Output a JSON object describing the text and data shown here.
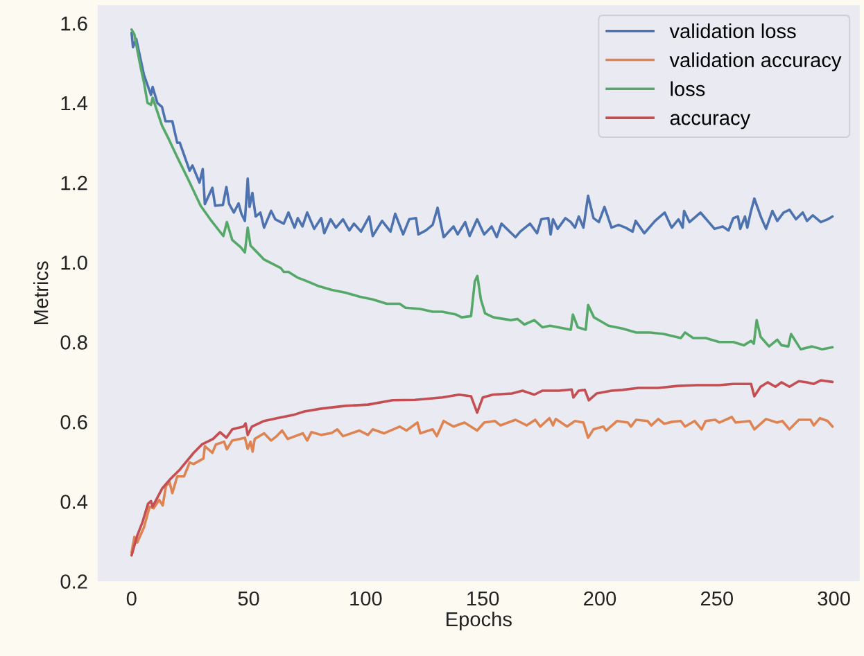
{
  "chart_data": {
    "type": "line",
    "xlabel": "Epochs",
    "ylabel": "Metrics",
    "xlim": [
      -14.5,
      311
    ],
    "ylim": [
      0.2,
      1.645
    ],
    "xticks": [
      0,
      50,
      100,
      150,
      200,
      250,
      300
    ],
    "yticks": [
      {
        "value": 0.2,
        "label": "0.2"
      },
      {
        "value": 0.4,
        "label": "0.4"
      },
      {
        "value": 0.6,
        "label": "0.6"
      },
      {
        "value": 0.8,
        "label": "0.8"
      },
      {
        "value": 1.0,
        "label": "1.0"
      },
      {
        "value": 1.2,
        "label": "1.2"
      },
      {
        "value": 1.4,
        "label": "1.4"
      },
      {
        "value": 1.6,
        "label": "1.6"
      }
    ],
    "grid": false,
    "legend": "top right",
    "line_style": "solid",
    "marker": "none",
    "series": [
      {
        "name": "validation loss",
        "color": "#4c72b0",
        "x": [
          0,
          0.6,
          2,
          5.3,
          8.3,
          9,
          11,
          13,
          14.5,
          17.4,
          19.5,
          20.6,
          21.8,
          24.8,
          26,
          29,
          30.4,
          31.3,
          34.5,
          35.7,
          39,
          40.5,
          41.7,
          43.7,
          45.7,
          46.9,
          48.4,
          49.6,
          50.4,
          51.6,
          53,
          55,
          56.6,
          59.6,
          61.4,
          65,
          67,
          69.6,
          71,
          73,
          75,
          78,
          81,
          82.3,
          85,
          87.3,
          90.3,
          93,
          95,
          98,
          101.5,
          103,
          107,
          110.6,
          112.6,
          116,
          118.6,
          121.5,
          122.5,
          125.7,
          128.6,
          130.7,
          133.3,
          137.5,
          139.3,
          142.5,
          144.4,
          147.6,
          150.6,
          153.8,
          156,
          158,
          164,
          166,
          170.2,
          173.2,
          175,
          178,
          179,
          180,
          182,
          185.3,
          187.6,
          189.4,
          191,
          193,
          195,
          197.3,
          199.6,
          202,
          205,
          208,
          211,
          214,
          215.3,
          219,
          223.6,
          227.7,
          230.7,
          233.6,
          235.4,
          236,
          238.3,
          243,
          249,
          252.5,
          255,
          257,
          259,
          260,
          262,
          263,
          264.3,
          266,
          269,
          271,
          273.7,
          275.8,
          278.5,
          281,
          283.8,
          286.7,
          288.5,
          291,
          294.4,
          297.3,
          299.4
        ],
        "values": [
          1.576,
          1.54,
          1.56,
          1.47,
          1.42,
          1.44,
          1.4,
          1.39,
          1.354,
          1.354,
          1.3,
          1.3,
          1.28,
          1.23,
          1.243,
          1.2,
          1.234,
          1.146,
          1.187,
          1.142,
          1.144,
          1.189,
          1.146,
          1.125,
          1.148,
          1.122,
          1.104,
          1.21,
          1.139,
          1.174,
          1.115,
          1.125,
          1.087,
          1.129,
          1.108,
          1.097,
          1.125,
          1.087,
          1.111,
          1.09,
          1.125,
          1.084,
          1.111,
          1.073,
          1.108,
          1.087,
          1.108,
          1.08,
          1.097,
          1.077,
          1.115,
          1.066,
          1.104,
          1.077,
          1.122,
          1.07,
          1.108,
          1.111,
          1.07,
          1.08,
          1.094,
          1.137,
          1.063,
          1.09,
          1.07,
          1.101,
          1.066,
          1.108,
          1.07,
          1.09,
          1.063,
          1.097,
          1.063,
          1.077,
          1.097,
          1.073,
          1.108,
          1.111,
          1.07,
          1.108,
          1.084,
          1.111,
          1.101,
          1.087,
          1.115,
          1.087,
          1.167,
          1.111,
          1.101,
          1.139,
          1.087,
          1.094,
          1.087,
          1.077,
          1.104,
          1.073,
          1.104,
          1.125,
          1.087,
          1.108,
          1.087,
          1.129,
          1.101,
          1.125,
          1.084,
          1.09,
          1.08,
          1.111,
          1.115,
          1.084,
          1.115,
          1.087,
          1.122,
          1.16,
          1.111,
          1.084,
          1.129,
          1.104,
          1.125,
          1.132,
          1.108,
          1.125,
          1.104,
          1.118,
          1.101,
          1.108,
          1.115
        ]
      },
      {
        "name": "validation accuracy",
        "color": "#dd8452",
        "x": [
          0,
          1.2,
          2.4,
          5.3,
          7.7,
          9.4,
          11.8,
          13.3,
          14.7,
          16.2,
          17.4,
          19.5,
          22.4,
          24.8,
          26.5,
          30.7,
          31.3,
          34.5,
          36,
          39.5,
          40.7,
          43,
          48.4,
          49.6,
          50.8,
          51.7,
          52.6,
          56.6,
          59.6,
          62,
          64.3,
          66.7,
          73.2,
          75,
          76.8,
          81,
          85.5,
          87.9,
          90.3,
          97.3,
          101,
          103,
          107.8,
          114.5,
          117.4,
          122.1,
          123.3,
          128.6,
          130.4,
          133.3,
          137.5,
          142.2,
          147.6,
          150.6,
          155.2,
          157.6,
          164,
          168.8,
          172.4,
          174.6,
          178.5,
          180,
          181.2,
          186,
          189.4,
          193,
          195,
          197.3,
          201.5,
          202.7,
          207.4,
          212,
          213.3,
          215.5,
          220.4,
          222,
          225,
          227.5,
          231,
          234.6,
          236.4,
          240.5,
          243.5,
          245.2,
          249.3,
          251,
          256.4,
          258,
          264,
          266,
          271,
          275.7,
          278,
          281,
          285,
          290,
          291.4,
          294,
          297.3,
          299.4
        ],
        "values": [
          0.272,
          0.311,
          0.297,
          0.335,
          0.387,
          0.383,
          0.404,
          0.39,
          0.439,
          0.449,
          0.421,
          0.463,
          0.463,
          0.498,
          0.494,
          0.508,
          0.539,
          0.522,
          0.543,
          0.55,
          0.531,
          0.553,
          0.56,
          0.532,
          0.55,
          0.525,
          0.557,
          0.571,
          0.553,
          0.564,
          0.578,
          0.557,
          0.571,
          0.553,
          0.574,
          0.567,
          0.572,
          0.581,
          0.564,
          0.578,
          0.567,
          0.581,
          0.571,
          0.588,
          0.578,
          0.598,
          0.571,
          0.581,
          0.564,
          0.602,
          0.588,
          0.598,
          0.578,
          0.598,
          0.602,
          0.591,
          0.605,
          0.591,
          0.605,
          0.588,
          0.609,
          0.591,
          0.607,
          0.588,
          0.602,
          0.598,
          0.56,
          0.581,
          0.588,
          0.578,
          0.602,
          0.598,
          0.588,
          0.605,
          0.602,
          0.591,
          0.607,
          0.595,
          0.6,
          0.602,
          0.588,
          0.602,
          0.581,
          0.602,
          0.605,
          0.598,
          0.612,
          0.598,
          0.602,
          0.581,
          0.607,
          0.598,
          0.602,
          0.581,
          0.605,
          0.605,
          0.591,
          0.609,
          0.602,
          0.588
        ]
      },
      {
        "name": "loss",
        "color": "#55a868",
        "x": [
          0,
          1.2,
          2.4,
          4,
          5.3,
          6.8,
          8.3,
          9,
          13,
          15.9,
          19.5,
          24.2,
          29.5,
          33.6,
          39.2,
          40.7,
          43,
          46.6,
          48.4,
          49.6,
          50.8,
          54.3,
          56.6,
          63.7,
          65,
          67,
          70.8,
          74.3,
          79.6,
          85.5,
          91.4,
          97.3,
          103,
          109,
          114.5,
          117,
          123.3,
          128.6,
          132.7,
          138.6,
          141,
          145,
          146.6,
          147.7,
          149.2,
          151,
          154.6,
          162,
          164.8,
          167.8,
          172,
          175.5,
          178.7,
          182.3,
          187.6,
          188.5,
          190.6,
          194,
          195,
          197.5,
          200.8,
          203.7,
          209.6,
          215.5,
          221.5,
          227.5,
          234.6,
          236.4,
          239.9,
          245.2,
          251,
          257,
          261.6,
          264.6,
          265.8,
          267,
          268.7,
          272.3,
          275.8,
          277.6,
          280.5,
          281.7,
          285.8,
          290.6,
          295,
          299.4
        ],
        "values": [
          1.584,
          1.572,
          1.534,
          1.486,
          1.451,
          1.4,
          1.395,
          1.413,
          1.343,
          1.309,
          1.264,
          1.208,
          1.142,
          1.108,
          1.066,
          1.101,
          1.056,
          1.038,
          1.025,
          1.087,
          1.042,
          1.021,
          1.007,
          0.986,
          0.976,
          0.976,
          0.962,
          0.954,
          0.941,
          0.931,
          0.924,
          0.914,
          0.907,
          0.896,
          0.896,
          0.886,
          0.883,
          0.876,
          0.876,
          0.869,
          0.862,
          0.865,
          0.952,
          0.966,
          0.907,
          0.872,
          0.862,
          0.855,
          0.858,
          0.844,
          0.855,
          0.837,
          0.841,
          0.837,
          0.831,
          0.869,
          0.837,
          0.831,
          0.893,
          0.862,
          0.851,
          0.841,
          0.834,
          0.824,
          0.824,
          0.82,
          0.81,
          0.824,
          0.81,
          0.81,
          0.8,
          0.8,
          0.792,
          0.803,
          0.796,
          0.855,
          0.813,
          0.789,
          0.806,
          0.792,
          0.789,
          0.82,
          0.782,
          0.789,
          0.782,
          0.787
        ]
      },
      {
        "name": "accuracy",
        "color": "#c44e52",
        "x": [
          0,
          2.4,
          4.7,
          7,
          8.3,
          9,
          13,
          16.5,
          20.6,
          26.5,
          30,
          34.8,
          37.8,
          40.5,
          43,
          47.8,
          48.7,
          49.6,
          51.4,
          56.6,
          62,
          69,
          73.8,
          81,
          91.4,
          101,
          111.5,
          121,
          128.6,
          132.7,
          139.8,
          145,
          147.6,
          150,
          154.3,
          162.5,
          167,
          172,
          175.5,
          182.5,
          188,
          188.7,
          191,
          193.6,
          195.3,
          198.6,
          205,
          209.6,
          216.5,
          225,
          233.3,
          241.6,
          251,
          257,
          264.6,
          266,
          268.7,
          271.7,
          275,
          277.6,
          281,
          285,
          288.5,
          291.4,
          294.4,
          299.4
        ],
        "values": [
          0.265,
          0.314,
          0.349,
          0.394,
          0.401,
          0.387,
          0.432,
          0.456,
          0.48,
          0.522,
          0.543,
          0.557,
          0.574,
          0.56,
          0.581,
          0.588,
          0.596,
          0.567,
          0.588,
          0.602,
          0.609,
          0.617,
          0.626,
          0.633,
          0.64,
          0.643,
          0.654,
          0.655,
          0.659,
          0.661,
          0.668,
          0.664,
          0.623,
          0.661,
          0.668,
          0.671,
          0.678,
          0.668,
          0.678,
          0.678,
          0.681,
          0.661,
          0.678,
          0.68,
          0.654,
          0.671,
          0.678,
          0.68,
          0.685,
          0.685,
          0.69,
          0.692,
          0.692,
          0.695,
          0.695,
          0.664,
          0.688,
          0.699,
          0.688,
          0.699,
          0.688,
          0.702,
          0.699,
          0.695,
          0.704,
          0.7
        ]
      }
    ]
  }
}
